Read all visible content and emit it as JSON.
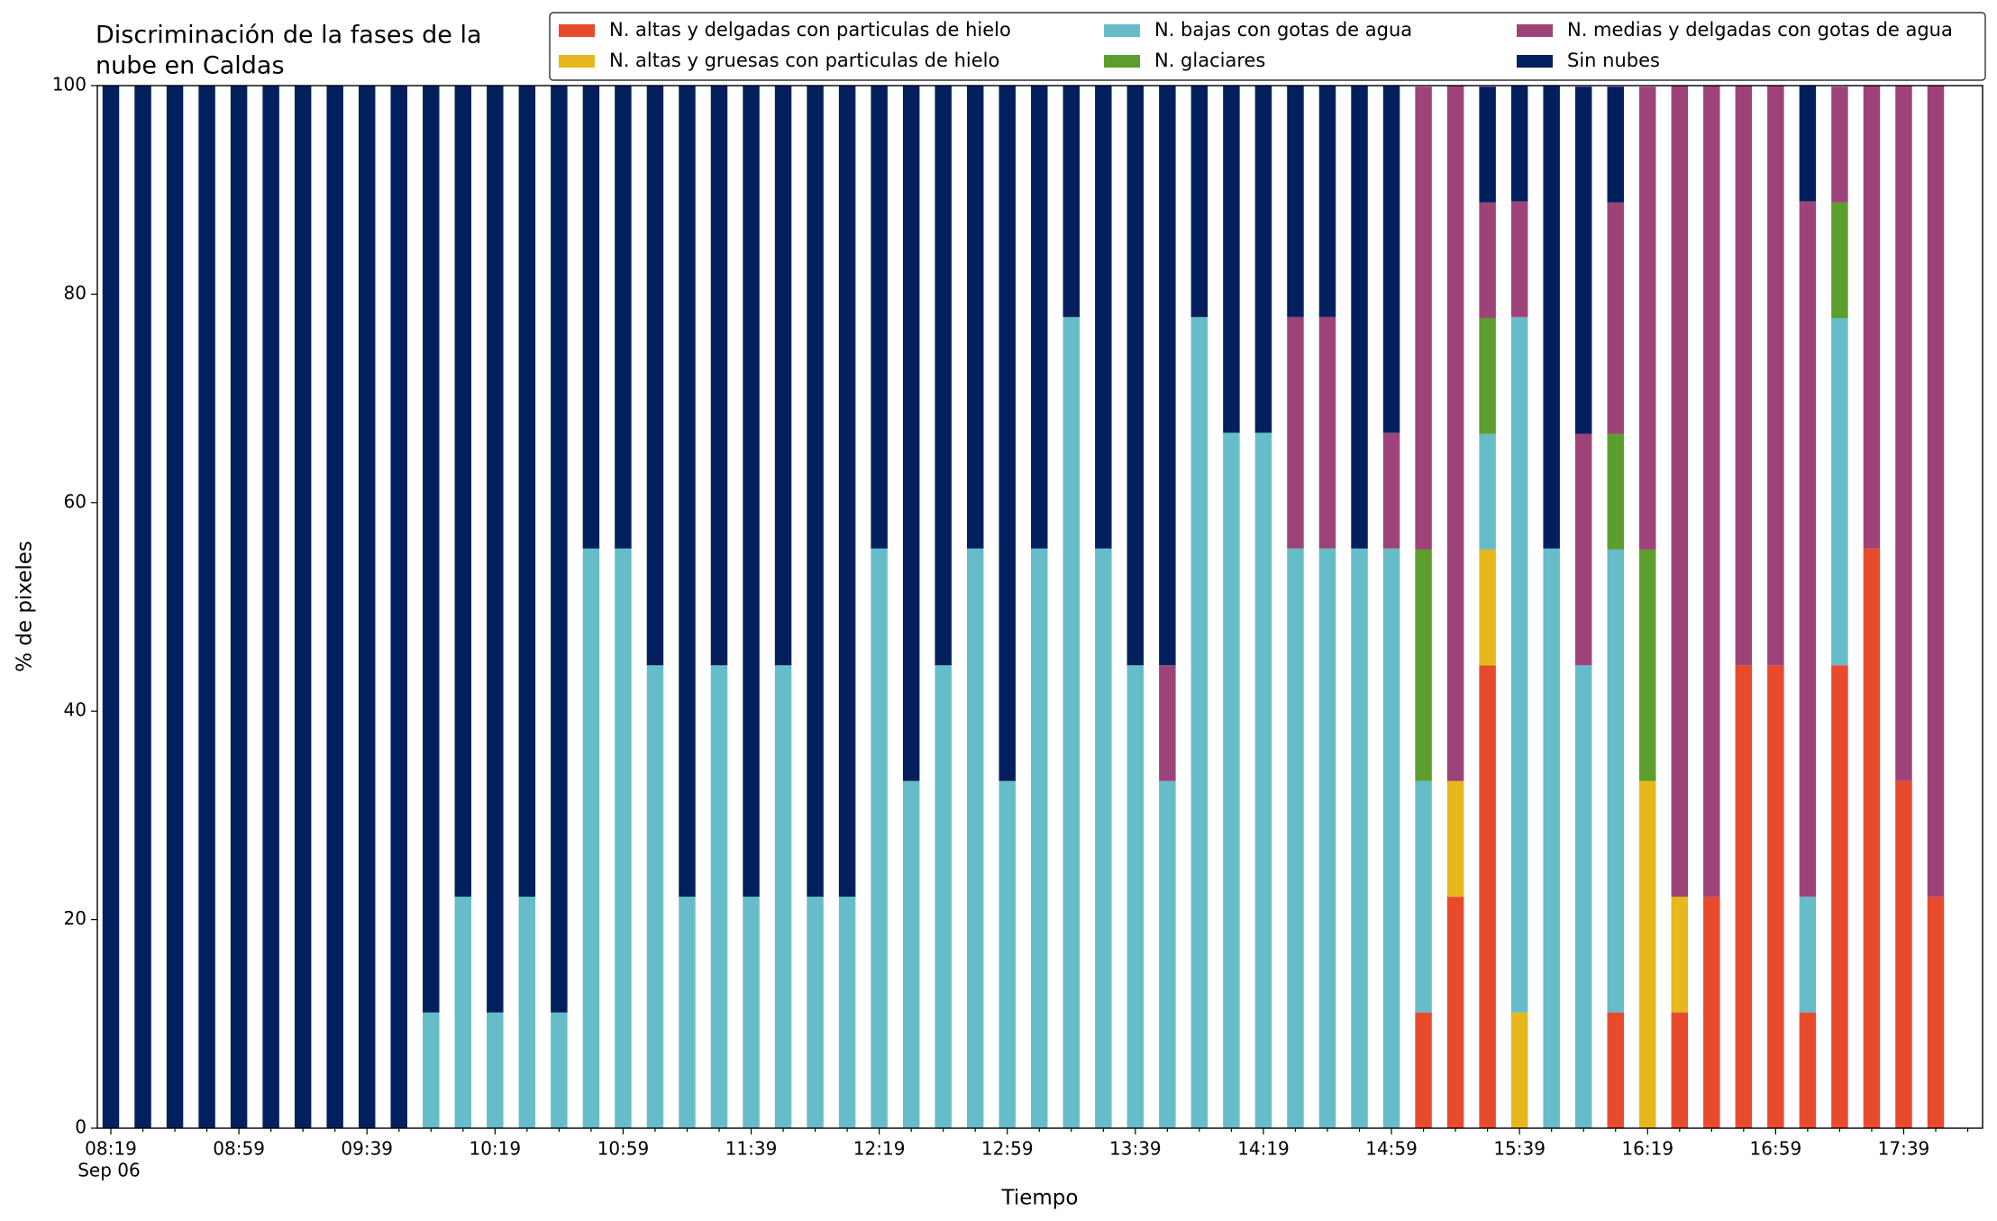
{
  "chart_data": {
    "type": "stacked_bar",
    "title": [
      "Discriminación de la fases de la",
      "nube en Caldas"
    ],
    "x_label": "Tiempo",
    "y_label": "% de pixeles",
    "x_sublabel": "Sep 06",
    "categories": [
      "08:19",
      null,
      null,
      null,
      "08:59",
      null,
      null,
      null,
      "09:39",
      null,
      null,
      null,
      "10:19",
      null,
      null,
      null,
      "10:59",
      null,
      null,
      null,
      "11:39",
      null,
      null,
      null,
      "12:19",
      null,
      null,
      null,
      "12:59",
      null,
      null,
      null,
      "13:39",
      null,
      null,
      null,
      "14:19",
      null,
      null,
      null,
      "14:59",
      null,
      null,
      null,
      "15:39",
      null,
      null,
      null,
      "16:19",
      null,
      null,
      null,
      "16:59",
      null,
      null,
      null,
      "17:39",
      null
    ],
    "ylim": [
      0,
      100
    ],
    "yticks": [
      0,
      20,
      40,
      60,
      80,
      100
    ],
    "grid": false,
    "legend": "top-right",
    "series": [
      {
        "name": "N. altas y delgadas con particulas de hielo",
        "color": "#e84a2c",
        "values": [
          0,
          0,
          0,
          0,
          0,
          0,
          0,
          0,
          0,
          0,
          0,
          0,
          0,
          0,
          0,
          0,
          0,
          0,
          0,
          0,
          0,
          0,
          0,
          0,
          0,
          0,
          0,
          0,
          0,
          0,
          0,
          0,
          0,
          0,
          0,
          0,
          0,
          0,
          0,
          0,
          0,
          11.1,
          22.2,
          44.4,
          0,
          0,
          0,
          11.1,
          0,
          11.1,
          22.2,
          44.4,
          44.4,
          11.1,
          44.4,
          55.6,
          33.3,
          22.2
        ]
      },
      {
        "name": "N. altas y gruesas con particulas de hielo",
        "color": "#e6b81c",
        "values": [
          0,
          0,
          0,
          0,
          0,
          0,
          0,
          0,
          0,
          0,
          0,
          0,
          0,
          0,
          0,
          0,
          0,
          0,
          0,
          0,
          0,
          0,
          0,
          0,
          0,
          0,
          0,
          0,
          0,
          0,
          0,
          0,
          0,
          0,
          0,
          0,
          0,
          0,
          0,
          0,
          0,
          0,
          11.1,
          11.1,
          11.1,
          0,
          0,
          0,
          33.3,
          11.1,
          0,
          0,
          0,
          0,
          0,
          0,
          0,
          0
        ]
      },
      {
        "name": "N. bajas con gotas de agua",
        "color": "#66bdc9",
        "values": [
          0,
          0,
          0,
          0,
          0,
          0,
          0,
          0,
          0,
          0,
          11.1,
          22.2,
          11.1,
          22.2,
          11.1,
          55.6,
          55.6,
          44.4,
          22.2,
          44.4,
          22.2,
          44.4,
          22.2,
          22.2,
          55.6,
          33.3,
          44.4,
          55.6,
          33.3,
          55.6,
          77.8,
          55.6,
          44.4,
          33.3,
          77.8,
          66.7,
          66.7,
          55.6,
          55.6,
          55.6,
          55.6,
          22.2,
          0,
          11.1,
          66.7,
          55.6,
          44.4,
          44.4,
          0,
          0,
          0,
          0,
          0,
          11.1,
          33.3,
          0,
          0,
          0
        ]
      },
      {
        "name": "N. glaciares",
        "color": "#5c9e2e",
        "values": [
          0,
          0,
          0,
          0,
          0,
          0,
          0,
          0,
          0,
          0,
          0,
          0,
          0,
          0,
          0,
          0,
          0,
          0,
          0,
          0,
          0,
          0,
          0,
          0,
          0,
          0,
          0,
          0,
          0,
          0,
          0,
          0,
          0,
          0,
          0,
          0,
          0,
          0,
          0,
          0,
          0,
          22.2,
          0,
          11.1,
          0,
          0,
          0,
          11.1,
          22.2,
          0,
          0,
          0,
          0,
          0,
          11.1,
          0,
          0,
          0
        ]
      },
      {
        "name": "N. medias y delgadas con gotas de agua",
        "color": "#9e437a",
        "values": [
          0,
          0,
          0,
          0,
          0,
          0,
          0,
          0,
          0,
          0,
          0,
          0,
          0,
          0,
          0,
          0,
          0,
          0,
          0,
          0,
          0,
          0,
          0,
          0,
          0,
          0,
          0,
          0,
          0,
          0,
          0,
          0,
          0,
          11.1,
          0,
          0,
          0,
          22.2,
          22.2,
          0,
          11.1,
          44.4,
          66.7,
          11.1,
          11.1,
          0,
          22.2,
          22.2,
          44.4,
          77.8,
          77.8,
          55.6,
          55.6,
          66.7,
          11.1,
          44.4,
          66.7,
          77.8
        ]
      },
      {
        "name": "Sin nubes",
        "color": "#03205e",
        "values": [
          100,
          100,
          100,
          100,
          100,
          100,
          100,
          100,
          100,
          100,
          88.9,
          77.8,
          88.9,
          77.8,
          88.9,
          44.4,
          44.4,
          55.6,
          77.8,
          55.6,
          77.8,
          55.6,
          77.8,
          77.8,
          44.4,
          66.7,
          55.6,
          44.4,
          66.7,
          44.4,
          22.2,
          44.4,
          55.6,
          55.6,
          22.2,
          33.3,
          33.3,
          22.2,
          22.2,
          44.4,
          33.3,
          0,
          0,
          11.1,
          11.1,
          44.4,
          33.3,
          11.1,
          0,
          0,
          0,
          0,
          0,
          11.1,
          0,
          0,
          0,
          0
        ]
      }
    ]
  }
}
